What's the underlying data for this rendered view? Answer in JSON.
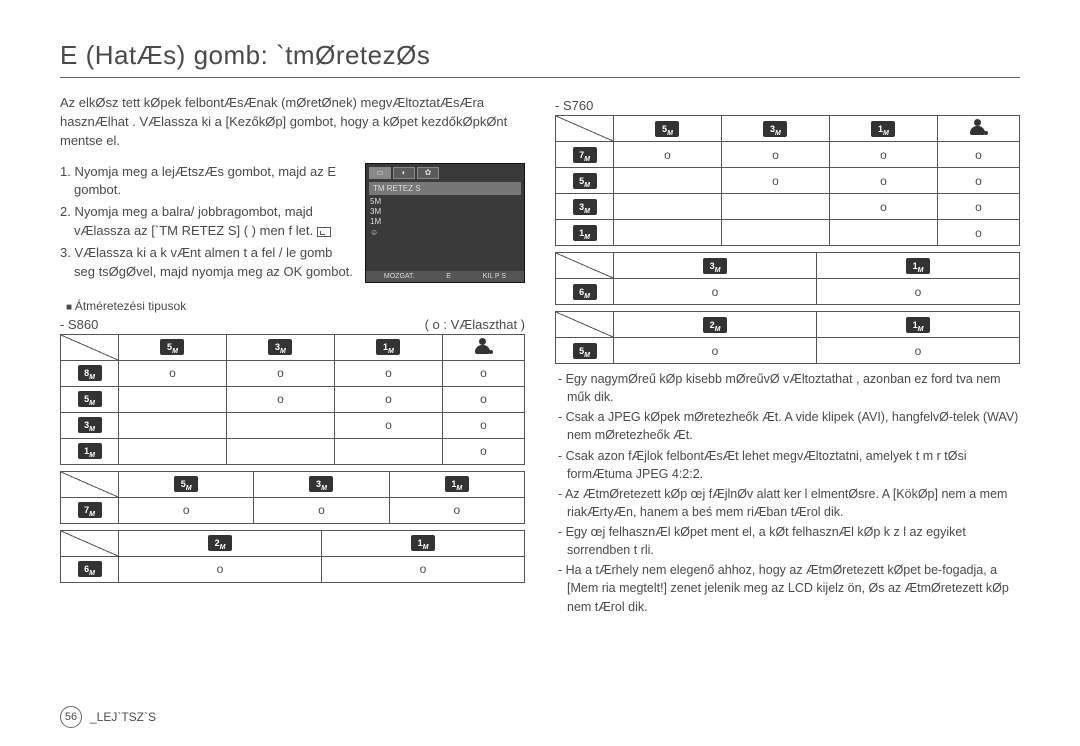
{
  "title": "E (HatÆs) gomb: `tmØretezØs",
  "intro": "Az elkØsz tett kØpek felbontÆsÆnak (mØretØnek) megvÆltoztatÆsÆra hasznÆlhat . VÆlassza ki a [KezőkØp] gombot, hogy a kØpet kezdőkØpkØnt mentse el.",
  "steps": [
    "1. Nyomja meg a lejÆtszÆs gombot, majd az E gombot.",
    "2. Nyomja meg a balra/ jobbragombot, majd vÆlassza az [`TM RETEZ S] (      ) men  f let.",
    "3. VÆlassza ki a k vÆnt almen t a  fel / le gomb seg tsØgØvel, majd nyomja meg az OK gombot."
  ],
  "cameraScreen": {
    "menuTitle": "TM RETEZ S",
    "items": [
      "5M",
      "3M",
      "1M",
      ""
    ],
    "footer": [
      "MOZGAT.",
      "E",
      "KIL P S"
    ]
  },
  "resizeTypesLabel": "Átméretezési tipusok",
  "selectableLabel": "( o : VÆlaszthat )",
  "models": {
    "s860": {
      "label": "- S860",
      "tableA": {
        "cols": [
          "5",
          "3",
          "1",
          "person"
        ],
        "rows": [
          {
            "hdr": "8",
            "cells": [
              "o",
              "o",
              "o",
              "o"
            ]
          },
          {
            "hdr": "5",
            "cells": [
              "",
              "o",
              "o",
              "o"
            ]
          },
          {
            "hdr": "3",
            "cells": [
              "",
              "",
              "o",
              "o"
            ]
          },
          {
            "hdr": "1",
            "cells": [
              "",
              "",
              "",
              "o"
            ]
          }
        ]
      },
      "tableB": {
        "cols": [
          "5",
          "3",
          "1"
        ],
        "rows": [
          {
            "hdr": "7",
            "cells": [
              "o",
              "o",
              "o"
            ]
          }
        ]
      },
      "tableC": {
        "cols": [
          "2",
          "1"
        ],
        "rows": [
          {
            "hdr": "6",
            "cells": [
              "o",
              "o"
            ]
          }
        ]
      }
    },
    "s760": {
      "label": "- S760",
      "tableA": {
        "cols": [
          "5",
          "3",
          "1",
          "person"
        ],
        "rows": [
          {
            "hdr": "7",
            "cells": [
              "o",
              "o",
              "o",
              "o"
            ]
          },
          {
            "hdr": "5",
            "cells": [
              "",
              "o",
              "o",
              "o"
            ]
          },
          {
            "hdr": "3",
            "cells": [
              "",
              "",
              "o",
              "o"
            ]
          },
          {
            "hdr": "1",
            "cells": [
              "",
              "",
              "",
              "o"
            ]
          }
        ]
      },
      "tableB": {
        "cols": [
          "3",
          "1"
        ],
        "rows": [
          {
            "hdr": "6",
            "cells": [
              "o",
              "o"
            ]
          }
        ]
      },
      "tableC": {
        "cols": [
          "2",
          "1"
        ],
        "rows": [
          {
            "hdr": "5",
            "cells": [
              "o",
              "o"
            ]
          }
        ]
      }
    }
  },
  "notes": [
    "- Egy nagymØreű kØp kisebb mØreűvØ vÆltoztathat , azonban ez ford tva nem műk dik.",
    "- Csak a JPEG kØpek mØretezheők Æt. A vide klipek (AVI), hangfelvØ-telek (WAV) nem mØretezheők Æt.",
    "- Csak azon fÆjlok felbontÆsÆt lehet megvÆltoztatni, amelyek t m r tØsi formÆtuma JPEG 4:2:2.",
    "-  Az ÆtmØretezett kØp œj fÆjlnØv alatt ker l elmentØsre. A [KökØp] nem a mem riakÆrtyÆn, hanem a beś mem riÆban tÆrol dik.",
    "- Egy œj felhasznÆl  kØpet ment el, a kØt felhasznÆl  kØp k z l az egyiket sorrendben t rli.",
    "- Ha a tÆrhely nem elegenő ahhoz, hogy az ÆtmØretezett kØpet be-fogadja, a [Mem ria megtelt!]  zenet jelenik meg az LCD kijelz ön, Øs az ÆtmØretezett kØp nem tÆrol dik."
  ],
  "footer": {
    "page": "56",
    "section": "_LEJ`TSZ`S"
  }
}
